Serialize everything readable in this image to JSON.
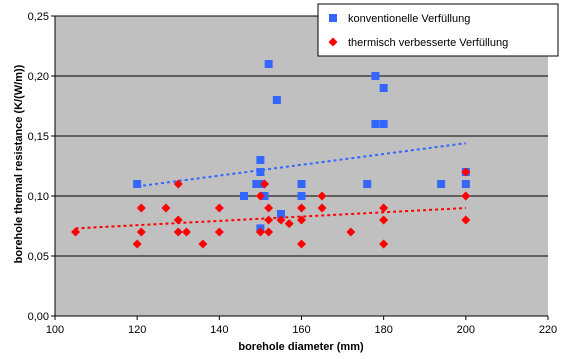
{
  "chart_data": {
    "type": "scatter",
    "title": "",
    "xlabel": "borehole diameter (mm)",
    "ylabel": "borehole thermal resistance (K/(W/m))",
    "xlim": [
      100,
      220
    ],
    "ylim": [
      0,
      0.25
    ],
    "x_ticks": [
      "100",
      "120",
      "140",
      "160",
      "180",
      "200",
      "220"
    ],
    "y_ticks": [
      "0,00",
      "0,05",
      "0,10",
      "0,15",
      "0,20",
      "0,25"
    ],
    "grid": "horizontal",
    "plot_background": "#c0c0c0",
    "legend_position": "top-right",
    "series": [
      {
        "name": "konventionelle Verfüllung",
        "marker": "square",
        "color": "#3366ff",
        "points": [
          [
            120,
            0.11
          ],
          [
            146,
            0.1
          ],
          [
            149,
            0.11
          ],
          [
            150,
            0.11
          ],
          [
            150,
            0.12
          ],
          [
            150,
            0.13
          ],
          [
            150,
            0.073
          ],
          [
            151,
            0.1
          ],
          [
            152,
            0.21
          ],
          [
            154,
            0.18
          ],
          [
            155,
            0.085
          ],
          [
            160,
            0.11
          ],
          [
            160,
            0.1
          ],
          [
            176,
            0.11
          ],
          [
            178,
            0.2
          ],
          [
            178,
            0.16
          ],
          [
            180,
            0.16
          ],
          [
            180,
            0.19
          ],
          [
            194,
            0.11
          ],
          [
            200,
            0.12
          ],
          [
            200,
            0.11
          ]
        ],
        "trendline": [
          [
            120,
            0.108
          ],
          [
            200,
            0.144
          ]
        ]
      },
      {
        "name": "thermisch verbesserte Verfüllung",
        "marker": "diamond",
        "color": "#ff0000",
        "points": [
          [
            105,
            0.07
          ],
          [
            120,
            0.06
          ],
          [
            121,
            0.07
          ],
          [
            121,
            0.09
          ],
          [
            127,
            0.09
          ],
          [
            130,
            0.08
          ],
          [
            130,
            0.07
          ],
          [
            130,
            0.11
          ],
          [
            132,
            0.07
          ],
          [
            136,
            0.06
          ],
          [
            140,
            0.07
          ],
          [
            140,
            0.09
          ],
          [
            150,
            0.1
          ],
          [
            150,
            0.07
          ],
          [
            151,
            0.11
          ],
          [
            152,
            0.07
          ],
          [
            152,
            0.08
          ],
          [
            152,
            0.09
          ],
          [
            155,
            0.08
          ],
          [
            157,
            0.077
          ],
          [
            160,
            0.06
          ],
          [
            160,
            0.08
          ],
          [
            160,
            0.09
          ],
          [
            165,
            0.09
          ],
          [
            165,
            0.1
          ],
          [
            172,
            0.07
          ],
          [
            180,
            0.06
          ],
          [
            180,
            0.08
          ],
          [
            180,
            0.09
          ],
          [
            200,
            0.08
          ],
          [
            200,
            0.1
          ],
          [
            200,
            0.12
          ]
        ],
        "trendline": [
          [
            105,
            0.073
          ],
          [
            200,
            0.09
          ]
        ]
      }
    ]
  }
}
